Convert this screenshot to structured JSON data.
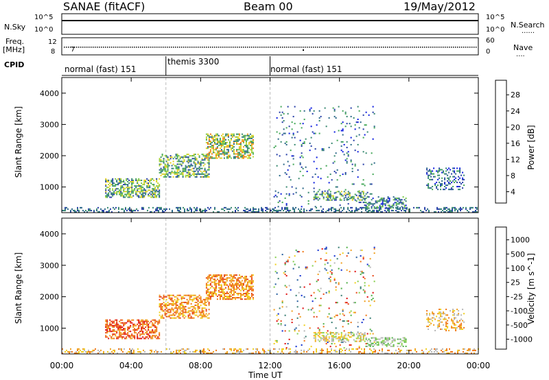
{
  "header": {
    "station": "SANAE (fitACF)",
    "beam": "Beam 00",
    "date": "19/May/2012"
  },
  "aux_panels": {
    "nsky_label": "N.Sky",
    "nsearch_label": "N.Search",
    "freq_label_line1": "Freq.",
    "freq_label_line2": "[MHz]",
    "nave_label": "Nave",
    "cpid_label": "CPID",
    "dots": "......",
    "dots_short": "....",
    "nsky_ticks": [
      "10^5",
      "10^0"
    ],
    "nsearch_ticks": [
      "10^5",
      "10^0"
    ],
    "freq_ticks": [
      "12",
      "8"
    ],
    "nave_ticks": [
      "60",
      "0"
    ],
    "freq_mark": "7"
  },
  "cpid_modes": [
    {
      "label": "normal (fast) 151",
      "start": 0,
      "end": 6
    },
    {
      "label": "themis 3300",
      "start": 6,
      "end": 12
    },
    {
      "label": "normal (fast) 151",
      "start": 12,
      "end": 24
    }
  ],
  "chart_data": [
    {
      "type": "heatmap",
      "title": "Power",
      "ylabel": "Slant Range [km]",
      "xlabel": "Time UT",
      "x_ticks": [
        "00:00",
        "04:00",
        "08:00",
        "12:00",
        "16:00",
        "20:00",
        "00:00"
      ],
      "xlim_hours": [
        0,
        24
      ],
      "y_ticks": [
        1000,
        2000,
        3000,
        4000
      ],
      "ylim": [
        180,
        4500
      ],
      "colorbar": {
        "label": "Power [dB]",
        "ticks": [
          "28",
          "24",
          "20",
          "16",
          "12",
          "8",
          "4"
        ],
        "colors": [
          "#1020e0",
          "#2840a8",
          "#2e6a8a",
          "#3a8a72",
          "#46a85a",
          "#78c84a",
          "#b8d838",
          "#e8d020",
          "#f0a020",
          "#f07818",
          "#e84818",
          "#e01010"
        ]
      },
      "echo_regions": [
        {
          "t": [
            0.0,
            24.0
          ],
          "r": [
            180,
            320
          ],
          "density": 0.35,
          "level": [
            1,
            3
          ]
        },
        {
          "t": [
            2.5,
            5.6
          ],
          "r": [
            650,
            1250
          ],
          "density": 0.55,
          "level": [
            1,
            7
          ]
        },
        {
          "t": [
            5.6,
            8.5
          ],
          "r": [
            1300,
            2050
          ],
          "density": 0.5,
          "level": [
            1,
            7
          ]
        },
        {
          "t": [
            8.3,
            11.0
          ],
          "r": [
            1900,
            2700
          ],
          "density": 0.55,
          "level": [
            2,
            9
          ]
        },
        {
          "t": [
            12.2,
            18.0
          ],
          "r": [
            350,
            3550
          ],
          "density": 0.05,
          "level": [
            0,
            4
          ]
        },
        {
          "t": [
            14.5,
            17.5
          ],
          "r": [
            560,
            850
          ],
          "density": 0.45,
          "level": [
            1,
            7
          ]
        },
        {
          "t": [
            17.5,
            19.8
          ],
          "r": [
            300,
            700
          ],
          "density": 0.4,
          "level": [
            0,
            5
          ]
        },
        {
          "t": [
            21.0,
            23.2
          ],
          "r": [
            900,
            1600
          ],
          "density": 0.3,
          "level": [
            0,
            4
          ]
        }
      ]
    },
    {
      "type": "heatmap",
      "title": "Velocity",
      "ylabel": "Slant Range [km]",
      "xlabel": "Time UT",
      "x_ticks": [
        "00:00",
        "04:00",
        "08:00",
        "12:00",
        "16:00",
        "20:00",
        "00:00"
      ],
      "xlim_hours": [
        0,
        24
      ],
      "y_ticks": [
        1000,
        2000,
        3000,
        4000
      ],
      "ylim": [
        180,
        4500
      ],
      "colorbar": {
        "label": "Velocity [m s^-1]",
        "ticks": [
          "1000",
          "500",
          "100",
          "25",
          "-25",
          "-100",
          "-500",
          "-1000"
        ],
        "colors": [
          "#1030d0",
          "#2860a0",
          "#3a7e74",
          "#50b048",
          "#88d050",
          "#b8b8b8",
          "#f0d020",
          "#f0a020",
          "#f07818",
          "#e84818",
          "#e01010"
        ]
      },
      "echo_regions": [
        {
          "t": [
            0.0,
            24.0
          ],
          "r": [
            180,
            320
          ],
          "density": 0.3,
          "level": [
            5,
            8
          ]
        },
        {
          "t": [
            2.5,
            5.6
          ],
          "r": [
            650,
            1250
          ],
          "density": 0.55,
          "level": [
            7,
            10
          ]
        },
        {
          "t": [
            5.6,
            8.5
          ],
          "r": [
            1300,
            2050
          ],
          "density": 0.5,
          "level": [
            6,
            9
          ]
        },
        {
          "t": [
            8.3,
            11.0
          ],
          "r": [
            1900,
            2700
          ],
          "density": 0.55,
          "level": [
            6,
            9
          ]
        },
        {
          "t": [
            12.2,
            18.0
          ],
          "r": [
            350,
            3550
          ],
          "density": 0.05,
          "level": [
            0,
            10
          ]
        },
        {
          "t": [
            14.5,
            17.5
          ],
          "r": [
            560,
            850
          ],
          "density": 0.45,
          "level": [
            4,
            7
          ]
        },
        {
          "t": [
            17.5,
            19.8
          ],
          "r": [
            400,
            700
          ],
          "density": 0.45,
          "level": [
            3,
            5
          ]
        },
        {
          "t": [
            21.0,
            23.2
          ],
          "r": [
            900,
            1600
          ],
          "density": 0.3,
          "level": [
            5,
            8
          ]
        }
      ]
    }
  ]
}
